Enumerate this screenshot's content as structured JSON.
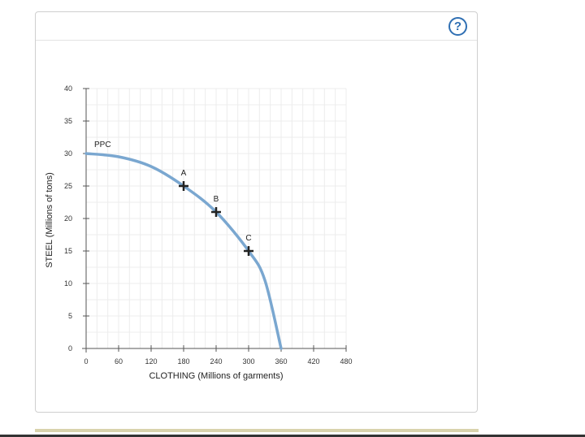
{
  "help_button": {
    "label": "?"
  },
  "chart_data": {
    "type": "line",
    "xlabel": "CLOTHING (Millions of garments)",
    "ylabel": "STEEL (Millions of tons)",
    "xlim": [
      0,
      480
    ],
    "ylim": [
      0,
      40
    ],
    "x_ticks": [
      0,
      60,
      120,
      180,
      240,
      300,
      360,
      420,
      480
    ],
    "y_ticks": [
      0,
      5,
      10,
      15,
      20,
      25,
      30,
      35,
      40
    ],
    "grid": true,
    "curve_color": "#7aa7d0",
    "series": [
      {
        "name": "PPC",
        "points": [
          [
            0,
            30
          ],
          [
            60,
            29.5
          ],
          [
            120,
            28
          ],
          [
            180,
            25
          ],
          [
            240,
            21
          ],
          [
            300,
            15
          ],
          [
            330,
            10.5
          ],
          [
            360,
            0
          ]
        ]
      }
    ],
    "markers": [
      {
        "label": "A",
        "x": 180,
        "y": 25
      },
      {
        "label": "B",
        "x": 240,
        "y": 21
      },
      {
        "label": "C",
        "x": 300,
        "y": 15
      }
    ]
  }
}
